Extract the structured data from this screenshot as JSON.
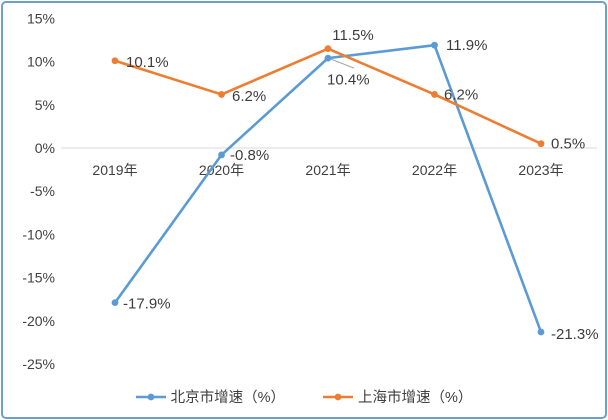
{
  "chart_data": {
    "type": "line",
    "categories": [
      "2019年",
      "2020年",
      "2021年",
      "2022年",
      "2023年"
    ],
    "series": [
      {
        "name": "北京市增速（%）",
        "color": "#5B9BD5",
        "values": [
          -17.9,
          -0.8,
          10.4,
          11.9,
          -21.3
        ],
        "point_labels": [
          "-17.9%",
          "-0.8%",
          "10.4%",
          "11.9%",
          "-21.3%"
        ]
      },
      {
        "name": "上海市增速（%）",
        "color": "#ED7D31",
        "values": [
          10.1,
          6.2,
          11.5,
          6.2,
          0.5
        ],
        "point_labels": [
          "10.1%",
          "6.2%",
          "11.5%",
          "6.2%",
          "0.5%"
        ]
      }
    ],
    "y_axis": {
      "min": -25,
      "max": 15,
      "step": 5,
      "tick_labels": [
        "15%",
        "10%",
        "5%",
        "0%",
        "-5%",
        "-10%",
        "-15%",
        "-20%",
        "-25%"
      ]
    },
    "grid": "zero-line-only",
    "legend_position": "bottom",
    "title": ""
  },
  "colors": {
    "beijing_line": "#5B9BD5",
    "shanghai_line": "#ED7D31",
    "zero_grid_line": "#D9D9D9",
    "axis_tick_text": "#404040",
    "data_label_text": "#3D3D3D",
    "leader_line": "#A6A6A6",
    "card_border": "#6F9EC9",
    "background": "#FFFFFF"
  }
}
